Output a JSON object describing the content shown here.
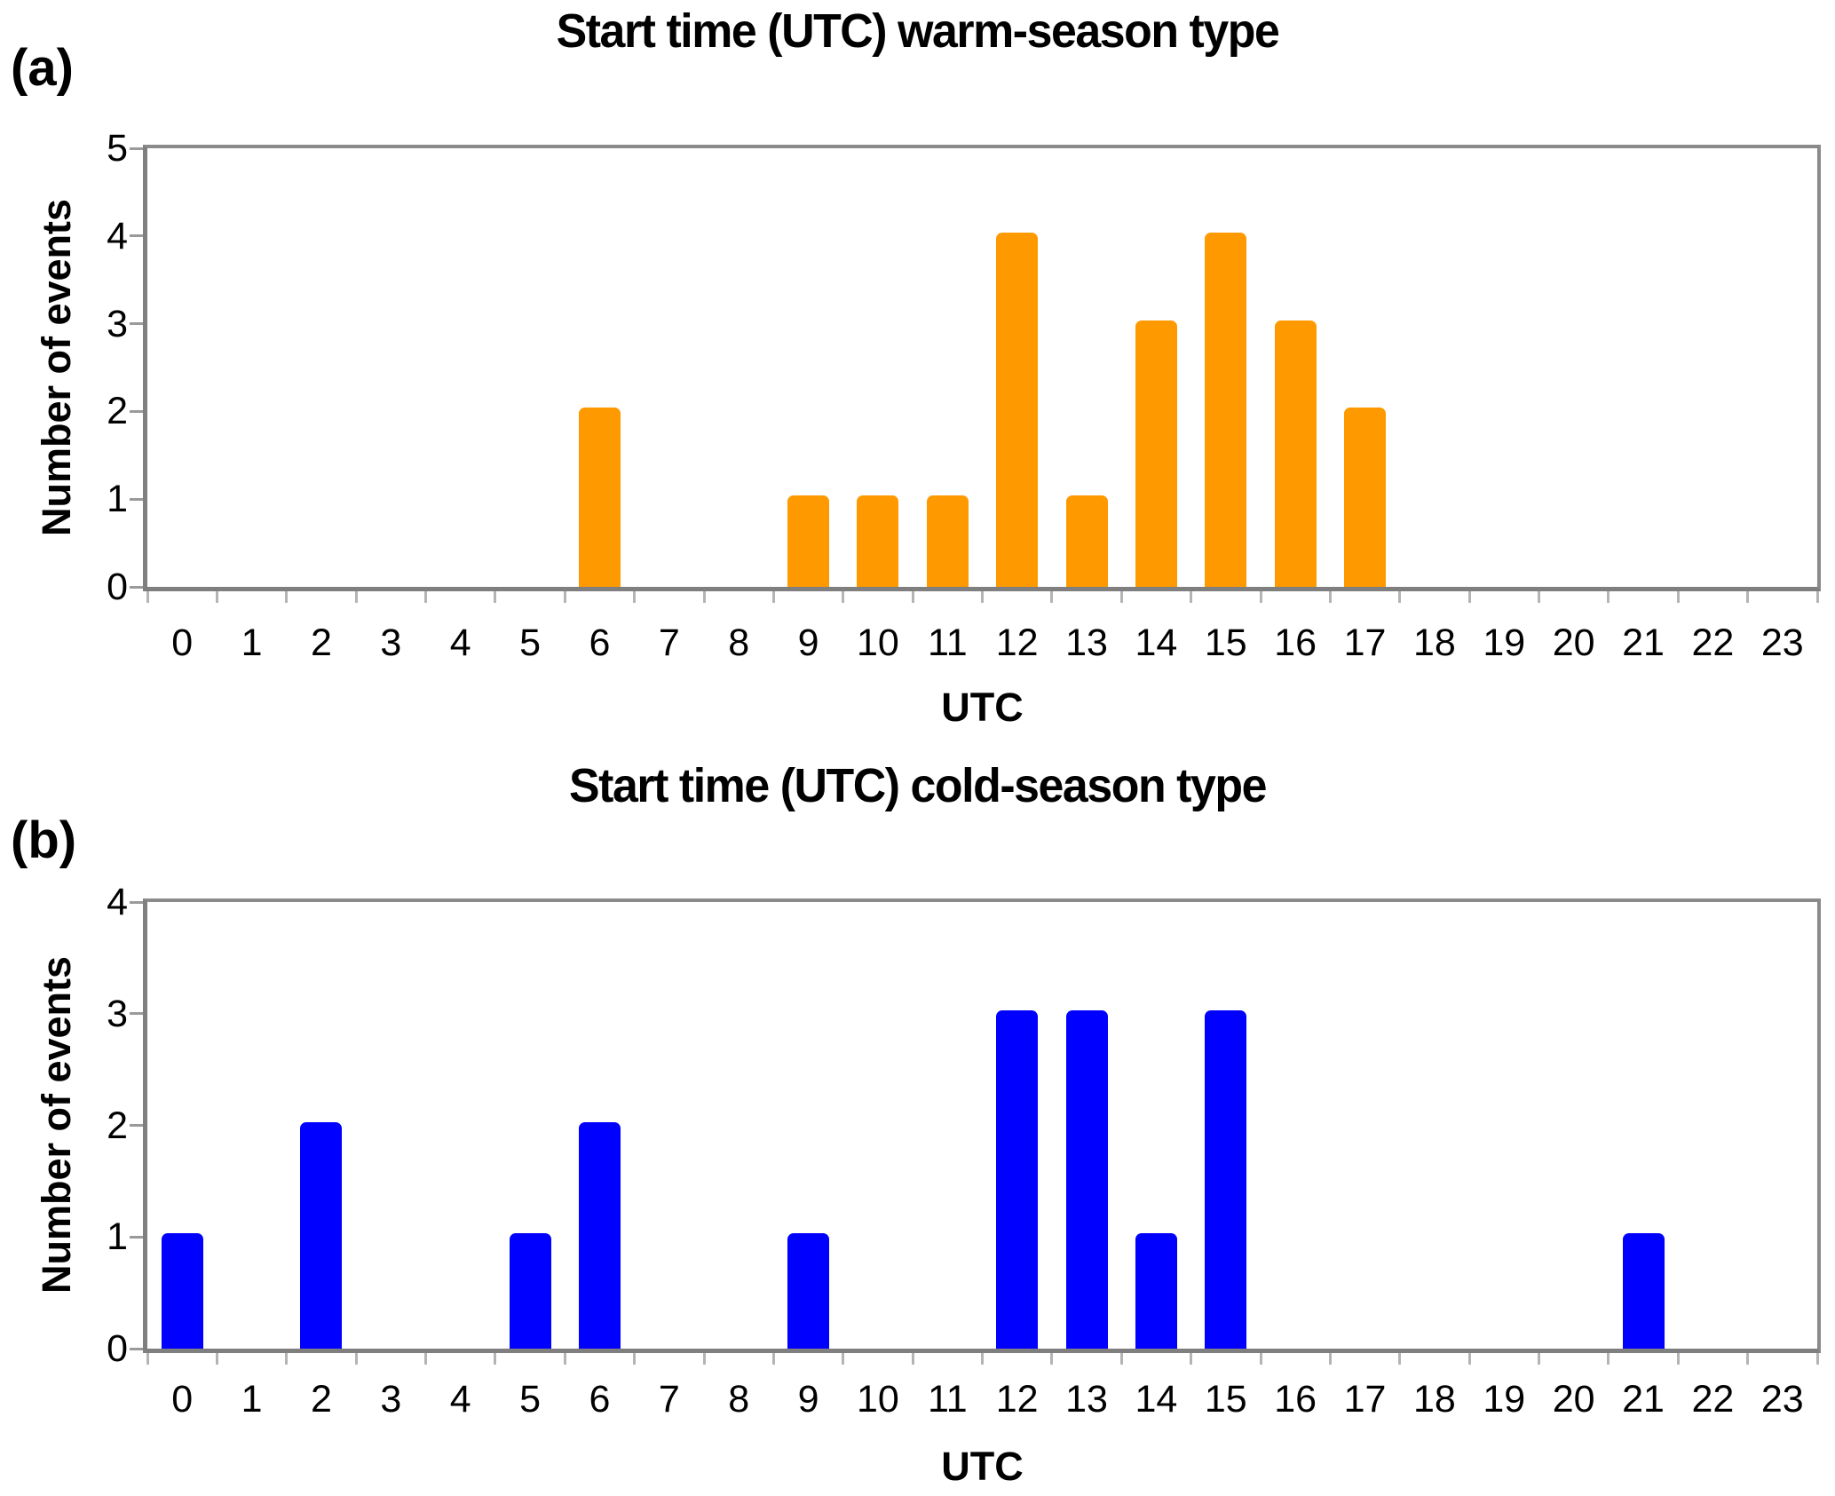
{
  "chart_data": [
    {
      "type": "bar",
      "panel_label": "(a)",
      "title": "Start time (UTC) warm-season type",
      "xlabel": "UTC",
      "ylabel": "Number of events",
      "bar_color": "#FF9900",
      "axis_color": "#808080",
      "categories": [
        "0",
        "1",
        "2",
        "3",
        "4",
        "5",
        "6",
        "7",
        "8",
        "9",
        "10",
        "11",
        "12",
        "13",
        "14",
        "15",
        "16",
        "17",
        "18",
        "19",
        "20",
        "21",
        "22",
        "23"
      ],
      "values": [
        0,
        0,
        0,
        0,
        0,
        0,
        2,
        0,
        0,
        1,
        1,
        1,
        4,
        1,
        3,
        4,
        3,
        2,
        0,
        0,
        0,
        0,
        0,
        0
      ],
      "ylim": [
        0,
        5
      ],
      "yticks": [
        0,
        1,
        2,
        3,
        4,
        5
      ],
      "grid": "off",
      "legend": "none"
    },
    {
      "type": "bar",
      "panel_label": "(b)",
      "title": "Start time (UTC) cold-season type",
      "xlabel": "UTC",
      "ylabel": "Number of events",
      "bar_color": "#0000FF",
      "axis_color": "#808080",
      "categories": [
        "0",
        "1",
        "2",
        "3",
        "4",
        "5",
        "6",
        "7",
        "8",
        "9",
        "10",
        "11",
        "12",
        "13",
        "14",
        "15",
        "16",
        "17",
        "18",
        "19",
        "20",
        "21",
        "22",
        "23"
      ],
      "values": [
        1,
        0,
        2,
        0,
        0,
        1,
        2,
        0,
        0,
        1,
        0,
        0,
        3,
        3,
        1,
        3,
        0,
        0,
        0,
        0,
        0,
        1,
        0,
        0
      ],
      "ylim": [
        0,
        4
      ],
      "yticks": [
        0,
        1,
        2,
        3,
        4
      ],
      "grid": "off",
      "legend": "none"
    }
  ]
}
